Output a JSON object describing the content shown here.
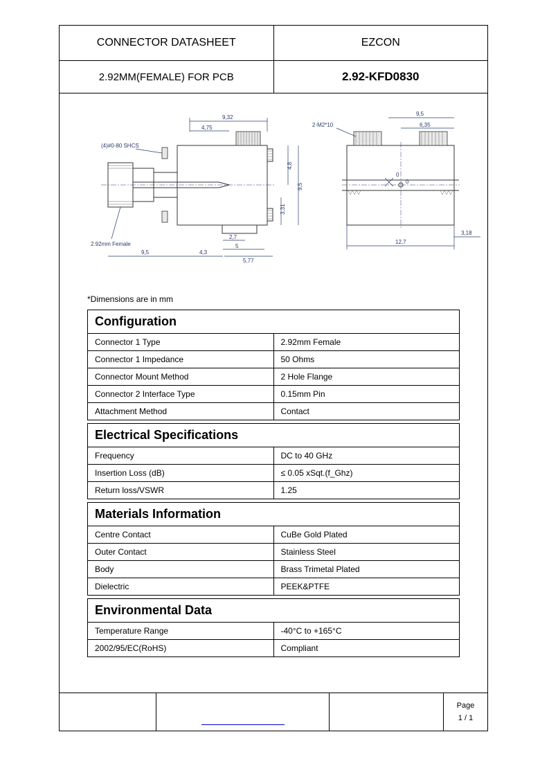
{
  "header": {
    "title_left": "CONNECTOR DATASHEET",
    "title_right": "EZCON",
    "subtitle_left": "2.92MM(FEMALE) FOR PCB",
    "part_number": "2.92-KFD0830"
  },
  "drawing": {
    "note": "*Dimensions are in mm",
    "labels": {
      "shcs": "(4)#0-80 SHCS",
      "connector": "2.92mm Female",
      "thread": "2-M2*10"
    },
    "dimensions": {
      "d932": "9,32",
      "d475": "4,75",
      "d48": "4,8",
      "d95v": "9,5",
      "d331": "3,31",
      "d27": "2,7",
      "d5": "5",
      "d43": "4,3",
      "d95h": "9,5",
      "d577": "5,77",
      "d95r": "9,5",
      "d635": "6,35",
      "d127": "12,7",
      "d318": "3,18"
    },
    "colors": {
      "dim_color": "#2a3b6a",
      "part_stroke": "#333333",
      "part_fill": "#e8e8e8"
    }
  },
  "sections": [
    {
      "title": "Configuration",
      "rows": [
        [
          "Connector 1 Type",
          "2.92mm Female"
        ],
        [
          "Connector 1 Impedance",
          "50 Ohms"
        ],
        [
          "Connector Mount Method",
          "2 Hole Flange"
        ],
        [
          "Connector 2 Interface Type",
          "0.15mm Pin"
        ],
        [
          "Attachment Method",
          "Contact"
        ]
      ]
    },
    {
      "title": "Electrical Specifications",
      "rows": [
        [
          "Frequency",
          "DC to 40 GHz"
        ],
        [
          "Insertion Loss (dB)",
          "≤ 0.05 xSqt.(f_Ghz)"
        ],
        [
          "Return loss/VSWR",
          "1.25"
        ]
      ]
    },
    {
      "title": "Materials Information",
      "rows": [
        [
          "Centre Contact",
          "CuBe Gold Plated"
        ],
        [
          "Outer Contact",
          "Stainless Steel"
        ],
        [
          "Body",
          "Brass Trimetal Plated"
        ],
        [
          "Dielectric",
          "PEEK&PTFE"
        ]
      ]
    },
    {
      "title": "Environmental Data",
      "rows": [
        [
          "Temperature Range",
          "-40°C to +165°C"
        ],
        [
          "2002/95/EC(RoHS)",
          "Compliant"
        ]
      ]
    }
  ],
  "footer": {
    "page_label": "Page",
    "page_value": "1 / 1"
  }
}
